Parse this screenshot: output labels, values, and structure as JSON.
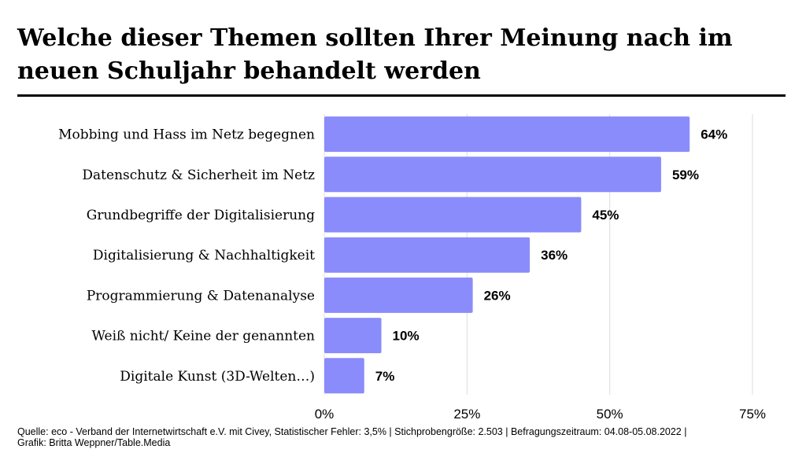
{
  "title": "Welche dieser Themen sollten Ihrer Meinung nach im neuen Schuljahr behandelt werden",
  "footer": {
    "source": "Quelle: eco - Verband der Internetwirtschaft e.V. mit Civey, Statistischer Fehler: 3,5% | Stichprobengröße: 2.503 | Befragungszeitraum: 04.08-05.08.2022 |",
    "credit": "Grafik: Britta Weppner/Table.Media"
  },
  "colors": {
    "bar": "#8A8CFB",
    "grid": "#DDDDDD",
    "text": "#000000"
  },
  "chart_data": {
    "type": "bar",
    "orientation": "horizontal",
    "title": "Welche dieser Themen sollten Ihrer Meinung nach im neuen Schuljahr behandelt werden",
    "xlabel": "",
    "ylabel": "",
    "categories": [
      "Mobbing und Hass im Netz begegnen",
      "Datenschutz & Sicherheit im Netz",
      "Grundbegriffe der Digitalisierung",
      "Digitalisierung & Nachhaltigkeit",
      "Programmierung & Datenanalyse",
      "Weiß nicht/ Keine der genannten",
      "Digitale Kunst (3D-Welten…)"
    ],
    "values": [
      64,
      59,
      45,
      36,
      26,
      10,
      7
    ],
    "value_labels": [
      "64%",
      "59%",
      "45%",
      "36%",
      "26%",
      "10%",
      "7%"
    ],
    "xlim": [
      0,
      75
    ],
    "ticks": [
      0,
      25,
      50,
      75
    ],
    "tick_labels": [
      "0%",
      "25%",
      "50%",
      "75%"
    ],
    "grid": true
  }
}
